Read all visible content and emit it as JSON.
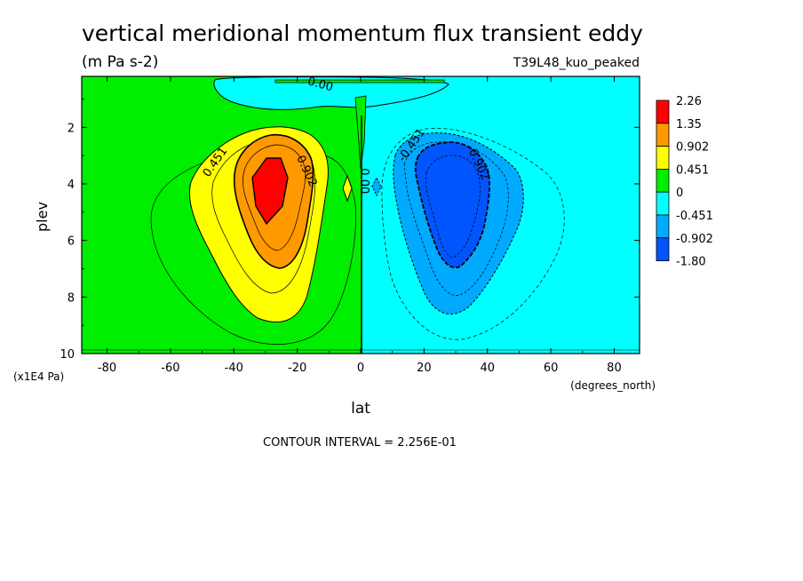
{
  "header": {
    "title": "vertical meridional momentum flux transient eddy",
    "units": "(m Pa s-2)",
    "dataset": "T39L48_kuo_peaked"
  },
  "footer": {
    "contour_interval": "CONTOUR INTERVAL = 2.256E-01"
  },
  "chart_data": {
    "type": "heatmap",
    "xlabel": "lat",
    "x_units": "(degrees_north)",
    "ylabel": "plev",
    "y_units": "(x1E4 Pa)",
    "xlim": [
      -88,
      88
    ],
    "ylim": [
      10,
      0.2
    ],
    "x_ticks": [
      -80,
      -60,
      -40,
      -20,
      0,
      20,
      40,
      60,
      80
    ],
    "y_ticks": [
      2,
      4,
      6,
      8,
      10
    ],
    "contour_labels": [
      {
        "text": "0.451",
        "lat": -45,
        "plev": 3.3
      },
      {
        "text": "0.902",
        "lat": -18,
        "plev": 3.6
      },
      {
        "text": "0.00",
        "lat": -13,
        "plev": 0.6
      },
      {
        "text": "0.00",
        "lat": 0,
        "plev": 3.9
      },
      {
        "text": "-0.451",
        "lat": 17,
        "plev": 2.7
      },
      {
        "text": "-0.902",
        "lat": 36,
        "plev": 3.3
      }
    ],
    "legend": {
      "levels": [
        {
          "label": "2.26",
          "color": "#ff0000"
        },
        {
          "label": "1.35",
          "color": "#ff9900"
        },
        {
          "label": "0.902",
          "color": "#ffff00"
        },
        {
          "label": "0.451",
          "color": "#00ee00"
        },
        {
          "label": "0",
          "color": "#00ffff"
        },
        {
          "label": "-0.451",
          "color": "#00aaff"
        },
        {
          "label": "-0.902",
          "color": "#0055ff"
        },
        {
          "label": "-1.80",
          "color": "#0055ff"
        }
      ]
    },
    "regions": [
      {
        "name": "northern-positive-yellow",
        "color": "#ffff00",
        "center": [
          -32,
          5.5
        ],
        "value": 0.451
      },
      {
        "name": "northern-positive-orange",
        "color": "#ff9900",
        "center": [
          -30,
          4.6
        ],
        "value": 0.902
      },
      {
        "name": "northern-positive-red",
        "color": "#ff0000",
        "center": [
          -29,
          4.0
        ],
        "value": 1.35
      },
      {
        "name": "southern-negative-lightblue",
        "color": "#00aaff",
        "center": [
          28,
          5.5
        ],
        "value": -0.451
      },
      {
        "name": "southern-negative-blue",
        "color": "#0055ff",
        "center": [
          29,
          4.6
        ],
        "value": -0.902
      }
    ]
  }
}
